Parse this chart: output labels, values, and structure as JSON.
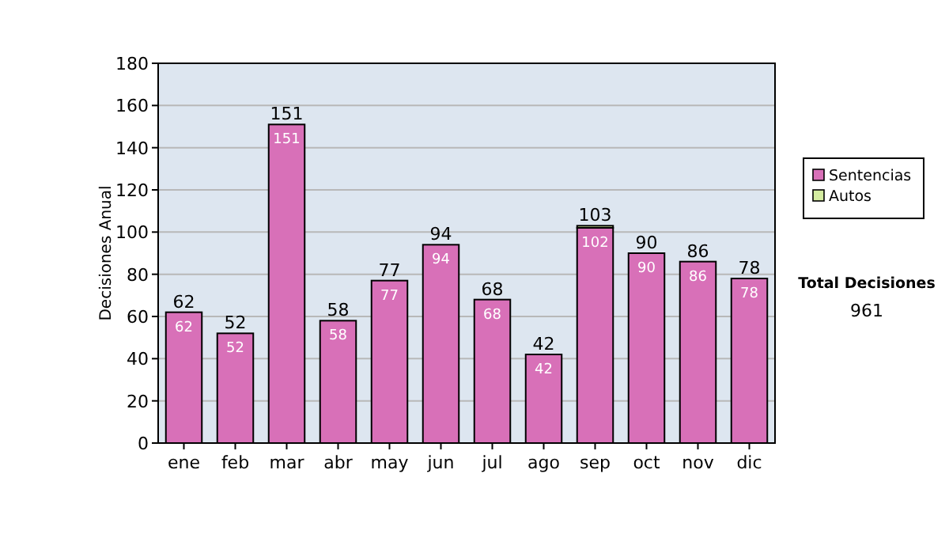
{
  "chart_data": {
    "type": "bar",
    "stacked": true,
    "ylabel": "Decisiones Anual",
    "categories": [
      "ene",
      "feb",
      "mar",
      "abr",
      "may",
      "jun",
      "jul",
      "ago",
      "sep",
      "oct",
      "nov",
      "dic"
    ],
    "series": [
      {
        "name": "Sentencias",
        "color": "#d870b8",
        "values": [
          62,
          52,
          151,
          58,
          77,
          94,
          68,
          42,
          102,
          90,
          86,
          78
        ],
        "value_labels": [
          "62",
          "52",
          "151",
          "58",
          "77",
          "94",
          "68",
          "42",
          "102",
          "90",
          "86",
          "78"
        ]
      },
      {
        "name": "Autos",
        "color": "#d4eca0",
        "values": [
          0,
          0,
          0,
          0,
          0,
          0,
          0,
          0,
          1,
          0,
          0,
          0
        ]
      }
    ],
    "totals": [
      "62",
      "52",
      "151",
      "58",
      "77",
      "94",
      "68",
      "42",
      "103",
      "90",
      "86",
      "78"
    ],
    "ylim": [
      0,
      180
    ],
    "yticks": [
      0,
      20,
      40,
      60,
      80,
      100,
      120,
      140,
      160,
      180
    ],
    "grid": "y",
    "legend": "right",
    "annotations": [
      "Total Decisiones",
      "961"
    ]
  }
}
